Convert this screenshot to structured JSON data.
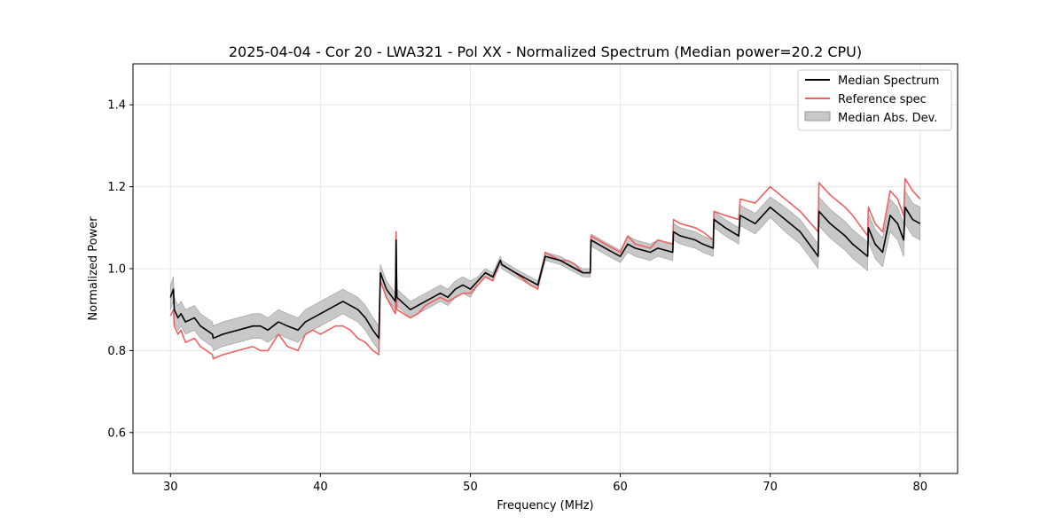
{
  "chart_data": {
    "type": "line",
    "title": "2025-04-04 - Cor 20 - LWA321 - Pol XX - Normalized Spectrum (Median power=20.2 CPU)",
    "xlabel": "Frequency (MHz)",
    "ylabel": "Normalized Power",
    "xlim": [
      27.5,
      82.5
    ],
    "ylim": [
      0.5,
      1.5
    ],
    "xticks": [
      30,
      40,
      50,
      60,
      70,
      80
    ],
    "yticks": [
      0.6,
      0.8,
      1.0,
      1.2,
      1.4
    ],
    "xtick_labels": [
      "30",
      "40",
      "50",
      "60",
      "70",
      "80"
    ],
    "ytick_labels": [
      "0.6",
      "0.8",
      "1.0",
      "1.2",
      "1.4"
    ],
    "grid": true,
    "legend_position": "top-right",
    "legend": [
      "Median Spectrum",
      "Reference spec",
      "Median Abs. Dev."
    ],
    "colors": {
      "median": "#000000",
      "reference": "#f06060",
      "mad_fill": "#c8c8c8",
      "mad_edge": "#999999",
      "grid": "#e6e6e6"
    },
    "series": [
      {
        "name": "Median Spectrum",
        "x": [
          30.0,
          30.2,
          30.25,
          30.5,
          30.7,
          31.0,
          31.6,
          32.0,
          32.8,
          32.85,
          33.5,
          34.5,
          35.5,
          36.0,
          36.5,
          37.2,
          37.8,
          38.5,
          39.0,
          39.5,
          40.0,
          40.5,
          41.0,
          41.5,
          42.0,
          42.5,
          43.0,
          43.5,
          43.9,
          44.0,
          44.4,
          45.0,
          45.05,
          45.1,
          46.0,
          46.5,
          47.0,
          47.5,
          48.0,
          48.5,
          49.0,
          49.5,
          50.0,
          50.5,
          51.0,
          51.5,
          52.0,
          52.1,
          53.0,
          54.0,
          54.5,
          55.0,
          56.0,
          56.5,
          57.0,
          57.5,
          58.0,
          58.05,
          59.0,
          60.0,
          60.5,
          61.0,
          62.0,
          62.5,
          63.5,
          63.55,
          64.0,
          65.0,
          65.5,
          66.2,
          66.25,
          67.0,
          67.9,
          68.0,
          69.0,
          69.5,
          70.0,
          71.0,
          72.0,
          73.2,
          73.25,
          74.0,
          75.0,
          75.5,
          76.5,
          76.55,
          77.0,
          77.5,
          78.0,
          78.5,
          78.9,
          79.0,
          79.5,
          80.0
        ],
        "values": [
          0.93,
          0.95,
          0.9,
          0.88,
          0.89,
          0.87,
          0.88,
          0.86,
          0.84,
          0.83,
          0.84,
          0.85,
          0.86,
          0.86,
          0.85,
          0.87,
          0.86,
          0.85,
          0.87,
          0.88,
          0.89,
          0.9,
          0.91,
          0.92,
          0.91,
          0.9,
          0.88,
          0.85,
          0.83,
          0.99,
          0.95,
          0.92,
          1.07,
          0.93,
          0.9,
          0.91,
          0.92,
          0.93,
          0.94,
          0.93,
          0.95,
          0.96,
          0.95,
          0.97,
          0.99,
          0.98,
          1.02,
          1.01,
          0.99,
          0.97,
          0.96,
          1.03,
          1.02,
          1.01,
          1.0,
          0.99,
          0.99,
          1.07,
          1.05,
          1.03,
          1.06,
          1.05,
          1.04,
          1.05,
          1.04,
          1.09,
          1.08,
          1.07,
          1.06,
          1.05,
          1.12,
          1.1,
          1.08,
          1.13,
          1.11,
          1.13,
          1.15,
          1.12,
          1.09,
          1.03,
          1.14,
          1.11,
          1.08,
          1.06,
          1.03,
          1.1,
          1.06,
          1.04,
          1.13,
          1.11,
          1.07,
          1.15,
          1.12,
          1.11
        ]
      },
      {
        "name": "Reference spec",
        "x": [
          30.0,
          30.2,
          30.25,
          30.5,
          30.7,
          31.0,
          31.6,
          32.0,
          32.8,
          32.85,
          33.5,
          34.5,
          35.5,
          36.0,
          36.5,
          37.2,
          37.8,
          38.5,
          39.0,
          39.5,
          40.0,
          40.5,
          41.0,
          41.5,
          42.0,
          42.5,
          43.0,
          43.5,
          43.9,
          44.0,
          44.4,
          45.0,
          45.05,
          45.1,
          46.0,
          46.5,
          47.0,
          47.5,
          48.0,
          48.5,
          49.0,
          49.5,
          50.0,
          50.5,
          51.0,
          51.5,
          52.0,
          52.1,
          53.0,
          54.0,
          54.5,
          55.0,
          56.0,
          56.5,
          57.0,
          57.5,
          58.0,
          58.05,
          59.0,
          60.0,
          60.5,
          61.0,
          62.0,
          62.5,
          63.5,
          63.55,
          64.0,
          65.0,
          65.5,
          66.2,
          66.25,
          67.0,
          67.9,
          68.0,
          69.0,
          69.5,
          70.0,
          71.0,
          72.0,
          73.2,
          73.25,
          74.0,
          75.0,
          75.5,
          76.5,
          76.55,
          77.0,
          77.5,
          78.0,
          78.5,
          78.9,
          79.0,
          79.5,
          80.0
        ],
        "values": [
          0.885,
          0.9,
          0.86,
          0.84,
          0.85,
          0.82,
          0.83,
          0.81,
          0.79,
          0.78,
          0.79,
          0.8,
          0.81,
          0.8,
          0.8,
          0.84,
          0.81,
          0.8,
          0.84,
          0.85,
          0.84,
          0.85,
          0.86,
          0.86,
          0.85,
          0.83,
          0.82,
          0.8,
          0.79,
          0.97,
          0.93,
          0.89,
          1.09,
          0.9,
          0.88,
          0.89,
          0.91,
          0.92,
          0.93,
          0.92,
          0.93,
          0.94,
          0.94,
          0.96,
          0.98,
          0.97,
          1.02,
          1.01,
          0.99,
          0.96,
          0.95,
          1.04,
          1.02,
          1.02,
          1.01,
          0.99,
          0.99,
          1.08,
          1.06,
          1.04,
          1.08,
          1.06,
          1.05,
          1.07,
          1.06,
          1.12,
          1.11,
          1.1,
          1.09,
          1.07,
          1.14,
          1.13,
          1.12,
          1.17,
          1.16,
          1.18,
          1.2,
          1.17,
          1.14,
          1.09,
          1.21,
          1.18,
          1.15,
          1.13,
          1.08,
          1.15,
          1.11,
          1.09,
          1.19,
          1.17,
          1.13,
          1.22,
          1.19,
          1.17
        ]
      }
    ],
    "band": {
      "name": "Median Abs. Dev.",
      "half_width": [
        0.03,
        0.03,
        0.03,
        0.03,
        0.03,
        0.03,
        0.03,
        0.03,
        0.03,
        0.03,
        0.03,
        0.03,
        0.03,
        0.03,
        0.03,
        0.03,
        0.03,
        0.03,
        0.03,
        0.03,
        0.03,
        0.03,
        0.03,
        0.03,
        0.03,
        0.03,
        0.03,
        0.03,
        0.03,
        0.02,
        0.02,
        0.02,
        0.02,
        0.02,
        0.02,
        0.02,
        0.02,
        0.02,
        0.02,
        0.02,
        0.02,
        0.02,
        0.02,
        0.01,
        0.01,
        0.01,
        0.01,
        0.01,
        0.01,
        0.01,
        0.01,
        0.01,
        0.01,
        0.01,
        0.01,
        0.01,
        0.01,
        0.015,
        0.015,
        0.015,
        0.02,
        0.02,
        0.02,
        0.02,
        0.02,
        0.02,
        0.02,
        0.02,
        0.02,
        0.02,
        0.02,
        0.02,
        0.02,
        0.025,
        0.025,
        0.025,
        0.025,
        0.03,
        0.03,
        0.03,
        0.035,
        0.035,
        0.035,
        0.035,
        0.035,
        0.035,
        0.035,
        0.035,
        0.04,
        0.04,
        0.04,
        0.04,
        0.04,
        0.04
      ]
    }
  }
}
